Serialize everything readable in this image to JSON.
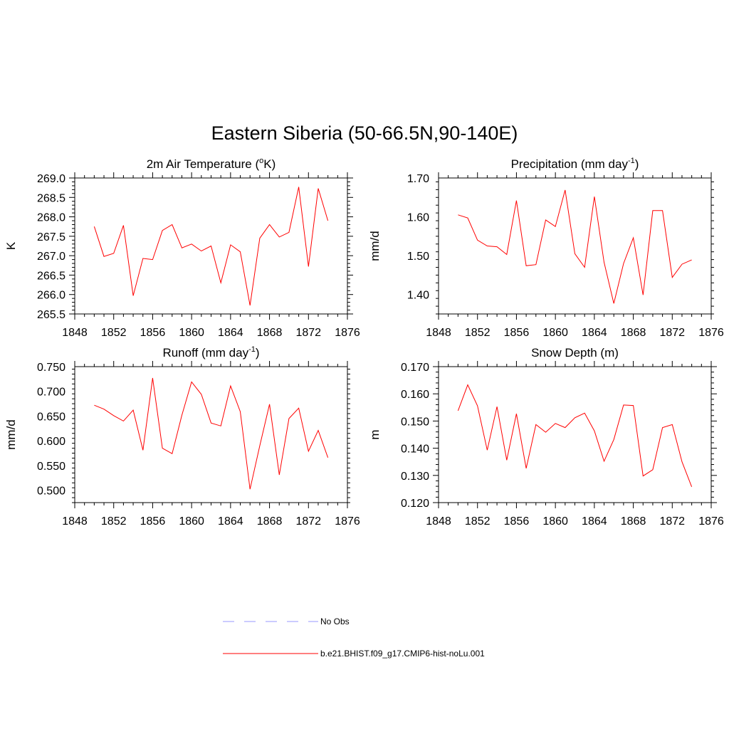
{
  "title": "Eastern Siberia (50-66.5N,90-140E)",
  "legend": {
    "placement": "bottom-center",
    "entries": [
      {
        "label": "No Obs",
        "color": "#9999ff",
        "dash": true
      },
      {
        "label": "b.e21.BHIST.f09_g17.CMIP6-hist-noLu.001",
        "color": "#ff0000",
        "dash": false
      }
    ]
  },
  "chart_data": [
    {
      "type": "line",
      "title_main": "2m Air Temperature (",
      "title_sup_pre": "o",
      "title_after": "K)",
      "title_sup_post": "",
      "title_end": "",
      "ylabel": "K",
      "xlim": [
        1848,
        1876
      ],
      "ylim": [
        265.5,
        269.0
      ],
      "xticks": [
        "1848",
        "1852",
        "1856",
        "1860",
        "1864",
        "1868",
        "1872",
        "1876"
      ],
      "yticks": [
        "265.5",
        "266.0",
        "266.5",
        "267.0",
        "267.5",
        "268.0",
        "268.5",
        "269.0"
      ],
      "series": [
        {
          "color": "#ff0000",
          "x": [
            1850,
            1851,
            1852,
            1853,
            1854,
            1855,
            1856,
            1857,
            1858,
            1859,
            1860,
            1861,
            1862,
            1863,
            1864,
            1865,
            1866,
            1867,
            1868,
            1869,
            1870,
            1871,
            1872,
            1873,
            1874
          ],
          "values": [
            267.75,
            266.98,
            267.06,
            267.78,
            265.97,
            266.93,
            266.9,
            267.65,
            267.8,
            267.2,
            267.3,
            267.12,
            267.25,
            266.3,
            267.28,
            267.1,
            265.72,
            267.45,
            267.8,
            267.48,
            267.6,
            268.77,
            266.72,
            268.73,
            267.9
          ]
        }
      ]
    },
    {
      "type": "line",
      "title_main": "Precipitation (mm day",
      "title_sup_pre": "",
      "title_after": "",
      "title_sup_post": "-1",
      "title_end": ")",
      "ylabel": "mm/d",
      "xlim": [
        1848,
        1876
      ],
      "ylim": [
        1.35,
        1.7
      ],
      "xticks": [
        "1848",
        "1852",
        "1856",
        "1860",
        "1864",
        "1868",
        "1872",
        "1876"
      ],
      "yticks": [
        "1.40",
        "1.50",
        "1.60",
        "1.70"
      ],
      "series": [
        {
          "color": "#ff0000",
          "x": [
            1850,
            1851,
            1852,
            1853,
            1854,
            1855,
            1856,
            1857,
            1858,
            1859,
            1860,
            1861,
            1862,
            1863,
            1864,
            1865,
            1866,
            1867,
            1868,
            1869,
            1870,
            1871,
            1872,
            1873,
            1874
          ],
          "values": [
            1.605,
            1.597,
            1.54,
            1.525,
            1.523,
            1.503,
            1.642,
            1.474,
            1.477,
            1.592,
            1.575,
            1.669,
            1.505,
            1.47,
            1.652,
            1.483,
            1.377,
            1.48,
            1.546,
            1.399,
            1.616,
            1.616,
            1.444,
            1.478,
            1.489
          ]
        }
      ]
    },
    {
      "type": "line",
      "title_main": "Runoff (mm day",
      "title_sup_pre": "",
      "title_after": "",
      "title_sup_post": "-1",
      "title_end": ")",
      "ylabel": "mm/d",
      "xlim": [
        1848,
        1876
      ],
      "ylim": [
        0.475,
        0.75
      ],
      "xticks": [
        "1848",
        "1852",
        "1856",
        "1860",
        "1864",
        "1868",
        "1872",
        "1876"
      ],
      "yticks": [
        "0.500",
        "0.550",
        "0.600",
        "0.650",
        "0.700",
        "0.750"
      ],
      "series": [
        {
          "color": "#ff0000",
          "x": [
            1850,
            1851,
            1852,
            1853,
            1854,
            1855,
            1856,
            1857,
            1858,
            1859,
            1860,
            1861,
            1862,
            1863,
            1864,
            1865,
            1866,
            1867,
            1868,
            1869,
            1870,
            1871,
            1872,
            1873,
            1874
          ],
          "values": [
            0.672,
            0.664,
            0.651,
            0.64,
            0.662,
            0.581,
            0.727,
            0.585,
            0.574,
            0.652,
            0.719,
            0.694,
            0.636,
            0.63,
            0.711,
            0.659,
            0.502,
            0.59,
            0.674,
            0.531,
            0.645,
            0.666,
            0.579,
            0.621,
            0.566
          ]
        }
      ]
    },
    {
      "type": "line",
      "title_main": "Snow Depth (m)",
      "title_sup_pre": "",
      "title_after": "",
      "title_sup_post": "",
      "title_end": "",
      "ylabel": "m",
      "xlim": [
        1848,
        1876
      ],
      "ylim": [
        0.12,
        0.17
      ],
      "xticks": [
        "1848",
        "1852",
        "1856",
        "1860",
        "1864",
        "1868",
        "1872",
        "1876"
      ],
      "yticks": [
        "0.120",
        "0.130",
        "0.140",
        "0.150",
        "0.160",
        "0.170"
      ],
      "series": [
        {
          "color": "#ff0000",
          "x": [
            1850,
            1851,
            1852,
            1853,
            1854,
            1855,
            1856,
            1857,
            1858,
            1859,
            1860,
            1861,
            1862,
            1863,
            1864,
            1865,
            1866,
            1867,
            1868,
            1869,
            1870,
            1871,
            1872,
            1873,
            1874
          ],
          "values": [
            0.1538,
            0.1633,
            0.1556,
            0.1393,
            0.1553,
            0.1356,
            0.1527,
            0.1326,
            0.1487,
            0.1459,
            0.1491,
            0.1476,
            0.1512,
            0.1529,
            0.1464,
            0.1352,
            0.1432,
            0.1559,
            0.1557,
            0.1298,
            0.1321,
            0.1476,
            0.1487,
            0.135,
            0.1258
          ]
        }
      ]
    }
  ]
}
